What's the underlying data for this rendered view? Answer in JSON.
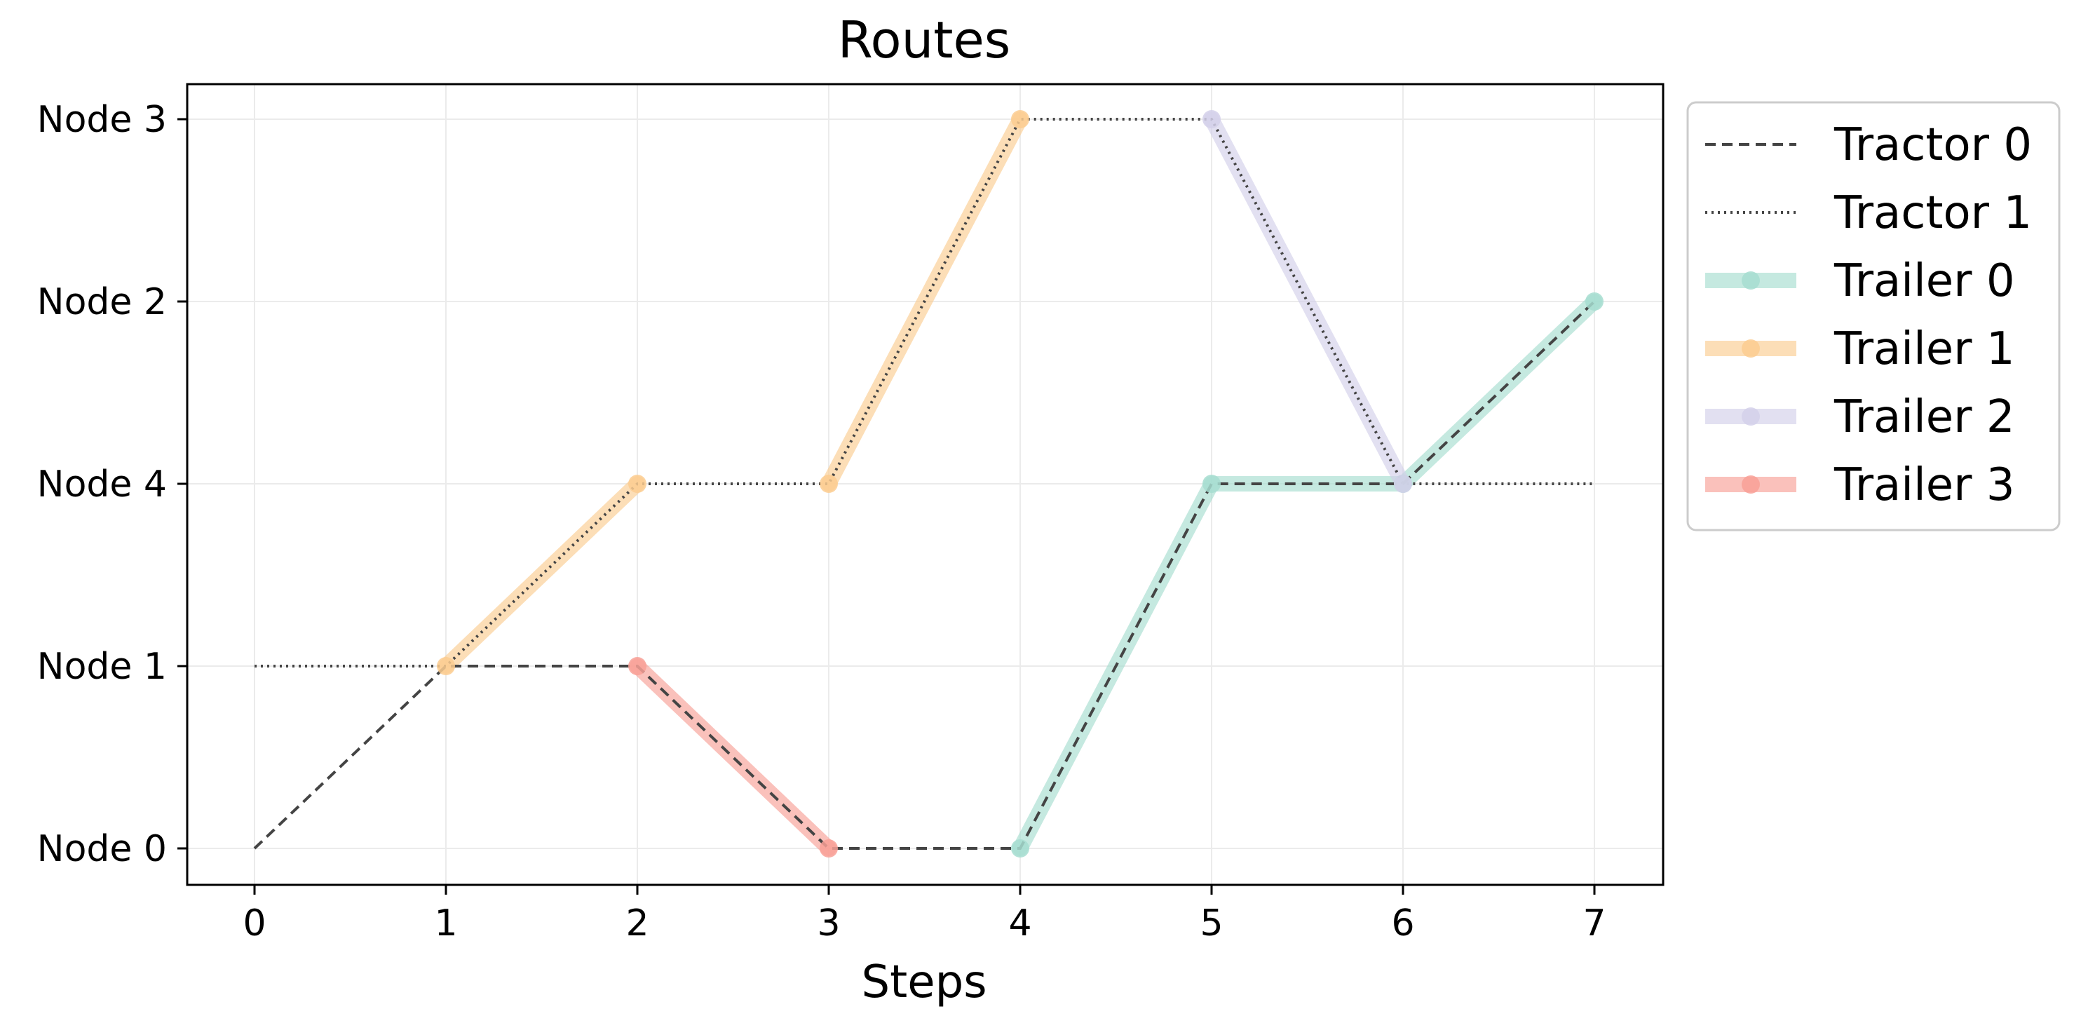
{
  "chart_data": {
    "type": "line",
    "title": "Routes",
    "xlabel": "Steps",
    "ylabel": "",
    "x_ticks": [
      0,
      1,
      2,
      3,
      4,
      5,
      6,
      7
    ],
    "y_categories": [
      "Node 0",
      "Node 1",
      "Node 4",
      "Node 2",
      "Node 3"
    ],
    "xlim": [
      -0.35,
      7.35
    ],
    "grid": true,
    "legend_position": "outside-right-top",
    "tractors": [
      {
        "name": "Tractor 0",
        "style": "dashed",
        "color": "#444444",
        "points": [
          [
            0,
            "Node 0"
          ],
          [
            1,
            "Node 1"
          ],
          [
            2,
            "Node 1"
          ],
          [
            3,
            "Node 0"
          ],
          [
            4,
            "Node 0"
          ],
          [
            5,
            "Node 4"
          ],
          [
            6,
            "Node 4"
          ],
          [
            7,
            "Node 2"
          ]
        ]
      },
      {
        "name": "Tractor 1",
        "style": "dotted",
        "color": "#444444",
        "points": [
          [
            0,
            "Node 1"
          ],
          [
            1,
            "Node 1"
          ],
          [
            2,
            "Node 4"
          ],
          [
            3,
            "Node 4"
          ],
          [
            4,
            "Node 3"
          ],
          [
            5,
            "Node 3"
          ],
          [
            6,
            "Node 4"
          ],
          [
            7,
            "Node 4"
          ]
        ]
      }
    ],
    "trailers": [
      {
        "name": "Trailer 0",
        "color": "#a6ddd0",
        "segments": [
          [
            [
              4,
              "Node 0"
            ],
            [
              5,
              "Node 4"
            ],
            [
              6,
              "Node 4"
            ],
            [
              7,
              "Node 2"
            ]
          ]
        ]
      },
      {
        "name": "Trailer 1",
        "color": "#fbcc90",
        "segments": [
          [
            [
              1,
              "Node 1"
            ],
            [
              2,
              "Node 4"
            ]
          ],
          [
            [
              3,
              "Node 4"
            ],
            [
              4,
              "Node 3"
            ]
          ]
        ]
      },
      {
        "name": "Trailer 2",
        "color": "#d3d0ea",
        "segments": [
          [
            [
              5,
              "Node 3"
            ],
            [
              6,
              "Node 4"
            ]
          ]
        ]
      },
      {
        "name": "Trailer 3",
        "color": "#f8a096",
        "segments": [
          [
            [
              2,
              "Node 1"
            ],
            [
              3,
              "Node 0"
            ]
          ]
        ]
      }
    ]
  }
}
